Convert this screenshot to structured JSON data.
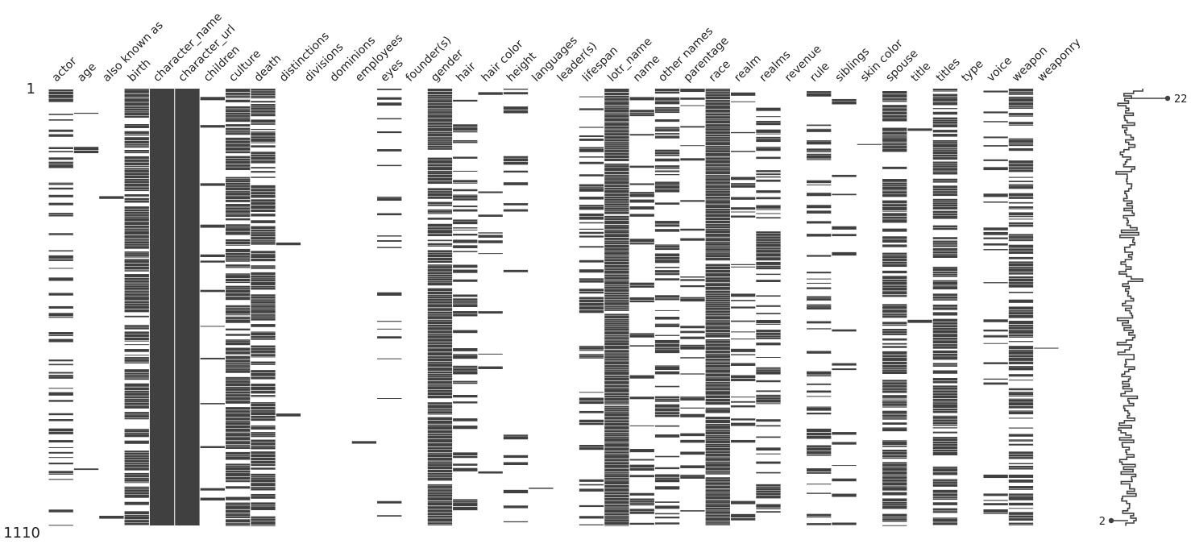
{
  "chart_data": {
    "type": "heatmap",
    "subtype": "missing-value matrix with row sparkline",
    "colors": {
      "present": "#404040",
      "missing": "#ffffff",
      "text": "#222222"
    },
    "row_labels": [
      "1",
      "1110"
    ],
    "row_count": 1110,
    "columns": [
      {
        "name": "actor",
        "density": 0.35
      },
      {
        "name": "age",
        "density": 0.03
      },
      {
        "name": "also known as",
        "density": 0.02
      },
      {
        "name": "birth",
        "density": 0.75
      },
      {
        "name": "character_name",
        "density": 1.0
      },
      {
        "name": "character_url",
        "density": 1.0
      },
      {
        "name": "children",
        "density": 0.06
      },
      {
        "name": "culture",
        "density": 0.8
      },
      {
        "name": "death",
        "density": 0.75
      },
      {
        "name": "distinctions",
        "density": 0.005
      },
      {
        "name": "divisions",
        "density": 0.003
      },
      {
        "name": "dominions",
        "density": 0.005
      },
      {
        "name": "employees",
        "density": 0.002
      },
      {
        "name": "eyes",
        "density": 0.1
      },
      {
        "name": "founder(s)",
        "density": 0.002
      },
      {
        "name": "gender",
        "density": 0.93
      },
      {
        "name": "hair",
        "density": 0.3
      },
      {
        "name": "hair color",
        "density": 0.06
      },
      {
        "name": "height",
        "density": 0.06
      },
      {
        "name": "languages",
        "density": 0.003
      },
      {
        "name": "leader(s)",
        "density": 0.002
      },
      {
        "name": "lifespan",
        "density": 0.25
      },
      {
        "name": "lotr_name",
        "density": 0.97
      },
      {
        "name": "name",
        "density": 0.25
      },
      {
        "name": "other names",
        "density": 0.35
      },
      {
        "name": "parentage",
        "density": 0.15
      },
      {
        "name": "race",
        "density": 0.97
      },
      {
        "name": "realm",
        "density": 0.25
      },
      {
        "name": "realms",
        "density": 0.4
      },
      {
        "name": "revenue",
        "density": 0.002
      },
      {
        "name": "rule",
        "density": 0.3
      },
      {
        "name": "siblings",
        "density": 0.06
      },
      {
        "name": "skin color",
        "density": 0.005
      },
      {
        "name": "spouse",
        "density": 0.75
      },
      {
        "name": "title",
        "density": 0.03
      },
      {
        "name": "titles",
        "density": 0.7
      },
      {
        "name": "type",
        "density": 0.002
      },
      {
        "name": "voice",
        "density": 0.15
      },
      {
        "name": "weapon",
        "density": 0.6
      },
      {
        "name": "weaponry",
        "density": 0.002
      }
    ],
    "sparkline": {
      "max_label": "22",
      "min_label": "2",
      "max_value": 22,
      "min_value": 2
    }
  }
}
